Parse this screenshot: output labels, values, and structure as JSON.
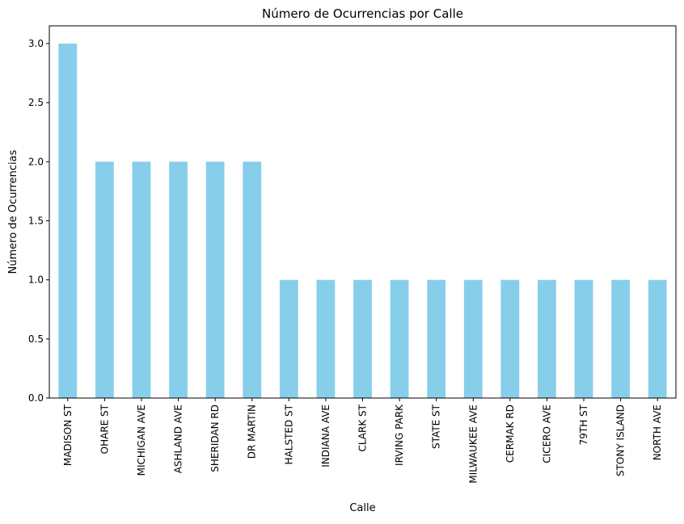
{
  "chart_data": {
    "type": "bar",
    "title": "Número de Ocurrencias por Calle",
    "xlabel": "Calle",
    "ylabel": "Número de Ocurrencias",
    "categories": [
      "MADISON ST",
      "OHARE ST",
      "MICHIGAN AVE",
      "ASHLAND AVE",
      "SHERIDAN RD",
      "DR MARTIN",
      "HALSTED ST",
      "INDIANA AVE",
      "CLARK ST",
      "IRVING PARK",
      "STATE ST",
      "MILWAUKEE AVE",
      "CERMAK RD",
      "CICERO AVE",
      "79TH ST",
      "STONY ISLAND",
      "NORTH AVE"
    ],
    "values": [
      3,
      2,
      2,
      2,
      2,
      2,
      1,
      1,
      1,
      1,
      1,
      1,
      1,
      1,
      1,
      1,
      1
    ],
    "ylim": [
      0,
      3.15
    ],
    "yticks": [
      "0.0",
      "0.5",
      "1.0",
      "1.5",
      "2.0",
      "2.5",
      "3.0"
    ],
    "bar_color": "#87ceeb",
    "grid": false,
    "legend": "none"
  }
}
